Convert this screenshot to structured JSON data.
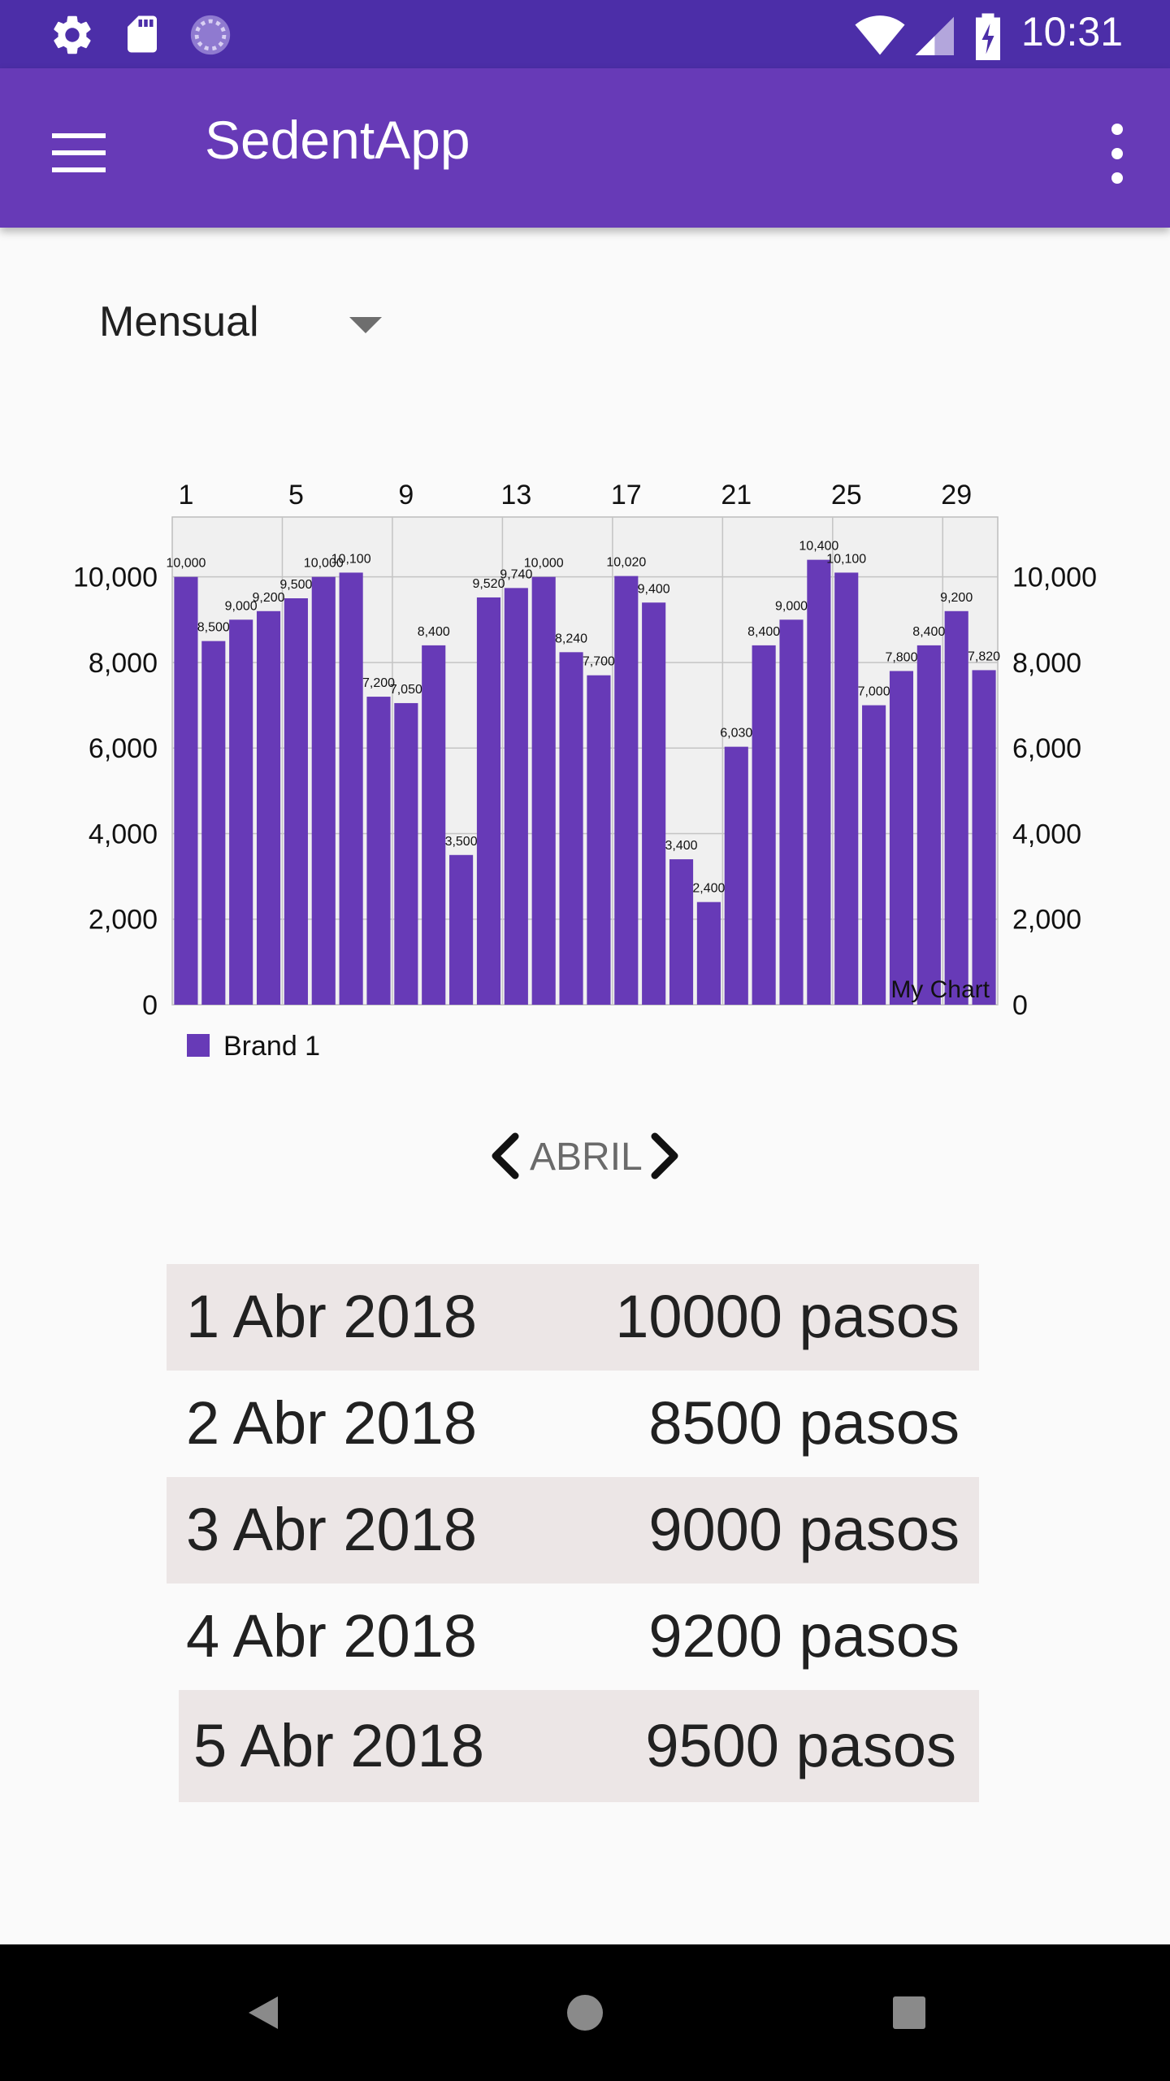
{
  "status_bar": {
    "time": "10:31",
    "left_icons": [
      "settings-icon",
      "sd-card-icon",
      "sync-icon"
    ],
    "right_icons": [
      "wifi-icon",
      "cell-signal-icon",
      "battery-charging-icon"
    ]
  },
  "app_bar": {
    "title": "SedentApp",
    "menu_icon": "hamburger-menu-icon",
    "overflow_icon": "more-vert-icon",
    "color": "#673ab7"
  },
  "period_selector": {
    "selected": "Mensual"
  },
  "chart_data": {
    "type": "bar",
    "description": "My Chart",
    "x": [
      1,
      2,
      3,
      4,
      5,
      6,
      7,
      8,
      9,
      10,
      11,
      12,
      13,
      14,
      15,
      16,
      17,
      18,
      19,
      20,
      21,
      22,
      23,
      24,
      25,
      26,
      27,
      28,
      29,
      30
    ],
    "x_ticks": [
      "1",
      "5",
      "9",
      "13",
      "17",
      "21",
      "25",
      "29"
    ],
    "series": [
      {
        "name": "Brand 1",
        "color": "#673ab7",
        "values": [
          10000,
          8500,
          9000,
          9200,
          9500,
          10000,
          10100,
          7200,
          7050,
          8400,
          3500,
          9520,
          9740,
          10000,
          8240,
          7700,
          10020,
          9400,
          3400,
          2400,
          6030,
          8400,
          9000,
          10400,
          10100,
          7000,
          7800,
          8400,
          9200,
          7820
        ],
        "value_labels": [
          "10,000",
          "8,500",
          "9,000",
          "9,200",
          "9,500",
          "10,000",
          "10,100",
          "7,200",
          "7,050",
          "8,400",
          "3,500",
          "9,520",
          "9,740",
          "10,000",
          "8,240",
          "7,700",
          "10,020",
          "9,400",
          "3,400",
          "2,400",
          "6,030",
          "8,400",
          "9,000",
          "10,400",
          "10,100",
          "7,000",
          "7,800",
          "8,400",
          "9,200",
          "7,820"
        ]
      }
    ],
    "y_ticks": [
      "0",
      "2,000",
      "4,000",
      "6,000",
      "8,000",
      "10,000"
    ],
    "ylim": [
      0,
      11400
    ],
    "grid": true,
    "x_axis_position": "top",
    "y_axis": "left and right",
    "legend": "bottom-left"
  },
  "month_nav": {
    "month": "ABRIL",
    "prev_icon": "chevron-left-icon",
    "next_icon": "chevron-right-icon"
  },
  "steps_list": [
    {
      "date": "1 Abr 2018",
      "steps": "10000 pasos"
    },
    {
      "date": "2 Abr 2018",
      "steps": "8500 pasos"
    },
    {
      "date": "3 Abr 2018",
      "steps": "9000 pasos"
    },
    {
      "date": "4 Abr 2018",
      "steps": "9200 pasos"
    },
    {
      "date": "5 Abr 2018",
      "steps": "9500 pasos"
    }
  ],
  "nav_bar": {
    "icons": [
      "back-icon",
      "home-icon",
      "recents-icon"
    ]
  }
}
